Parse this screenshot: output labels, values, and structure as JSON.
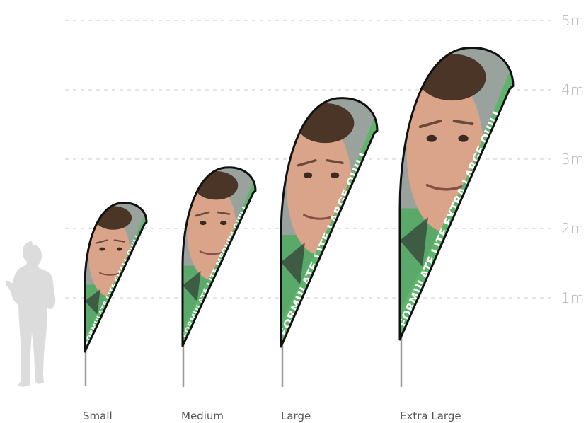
{
  "scale": {
    "unit_labels": [
      "1m",
      "2m",
      "3m",
      "4m",
      "5m"
    ],
    "colors": {
      "grid": "#c8c8c8",
      "label": "#b8b8b8"
    }
  },
  "flags": [
    {
      "id": "small",
      "label": "Small",
      "banner_text": "FORMULATE LITE SMALL QUILL"
    },
    {
      "id": "medium",
      "label": "Medium",
      "banner_text": "FORMULATE LITE MEDIUM QUILL"
    },
    {
      "id": "large",
      "label": "Large",
      "banner_text": "FORMULATE LITE LARGE QUILL"
    },
    {
      "id": "extra-large",
      "label": "Extra Large",
      "banner_text": "FORMULATE LITE EXTRA LARGE QUILL"
    }
  ],
  "colors": {
    "banner_green": "#5cb56a",
    "flag_border": "#111111",
    "pole": "#9a9a9a",
    "silhouette": "#dcdcdc",
    "skin": "#d9a489",
    "hair": "#4a3527",
    "backdrop": "#9aa29e",
    "shirt": "#5aa86a"
  }
}
